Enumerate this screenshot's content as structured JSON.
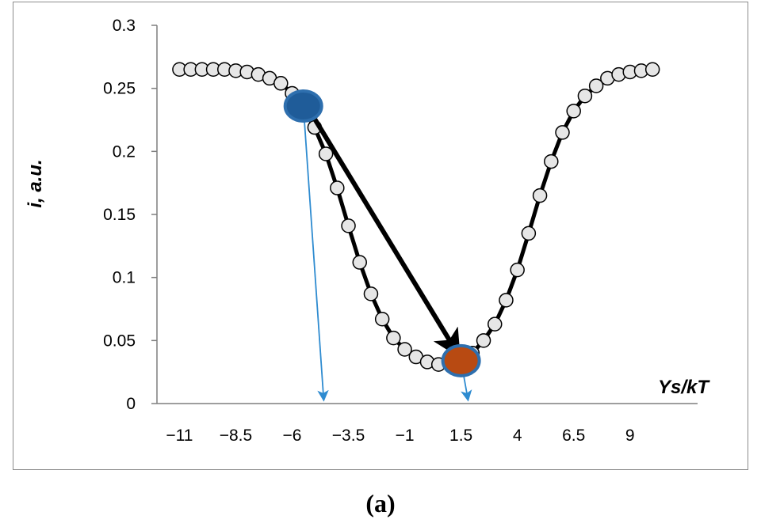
{
  "chart_data": {
    "type": "line",
    "xlabel": "Ys/kT",
    "ylabel": "i, a.u.",
    "ylim": [
      0,
      0.3
    ],
    "xlim": [
      -12,
      12
    ],
    "yticks": [
      "0",
      "0.05",
      "0.1",
      "0.15",
      "0.2",
      "0.25",
      "0.3"
    ],
    "xticks": [
      "−11",
      "−8.5",
      "−6",
      "−3.5",
      "−1",
      "1.5",
      "4",
      "6.5",
      "9"
    ],
    "grid": false,
    "series": [
      {
        "x": [
          -11,
          -10.5,
          -10,
          -9.5,
          -9,
          -8.5,
          -8,
          -7.5,
          -7,
          -6.5,
          -6,
          -5.5,
          -5,
          -4.5,
          -4,
          -3.5,
          -3,
          -2.5,
          -2,
          -1.5,
          -1,
          -0.5,
          0,
          0.5,
          1,
          1.5,
          2,
          2.5,
          3,
          3.5,
          4,
          4.5,
          5,
          5.5,
          6,
          6.5,
          7,
          7.5,
          8,
          8.5,
          9,
          9.5,
          10
        ],
        "y": [
          0.265,
          0.265,
          0.265,
          0.265,
          0.265,
          0.264,
          0.263,
          0.261,
          0.258,
          0.254,
          0.246,
          0.234,
          0.219,
          0.198,
          0.171,
          0.141,
          0.112,
          0.087,
          0.067,
          0.052,
          0.043,
          0.037,
          0.033,
          0.031,
          0.031,
          0.034,
          0.04,
          0.05,
          0.063,
          0.082,
          0.106,
          0.135,
          0.165,
          0.192,
          0.215,
          0.232,
          0.244,
          0.252,
          0.258,
          0.261,
          0.263,
          0.264,
          0.265
        ]
      }
    ],
    "highlight_points": [
      {
        "x": -5.5,
        "y": 0.236,
        "color": "#1f5c99"
      },
      {
        "x": 1.5,
        "y": 0.034,
        "color": "#b84a12"
      }
    ],
    "arrow": {
      "from": [
        -5.5,
        0.236
      ],
      "to": [
        1.2,
        0.044
      ],
      "color": "#000000"
    },
    "projection_arrows": [
      {
        "from": [
          -5.5,
          0.236
        ],
        "to": [
          -4.6,
          0
        ],
        "color": "#2e8bd0"
      },
      {
        "from": [
          1.5,
          0.034
        ],
        "to": [
          1.8,
          0
        ],
        "color": "#2e8bd0"
      }
    ],
    "marker_fill": "#e6e6e6",
    "line_color": "#000000"
  },
  "caption": "(a)"
}
